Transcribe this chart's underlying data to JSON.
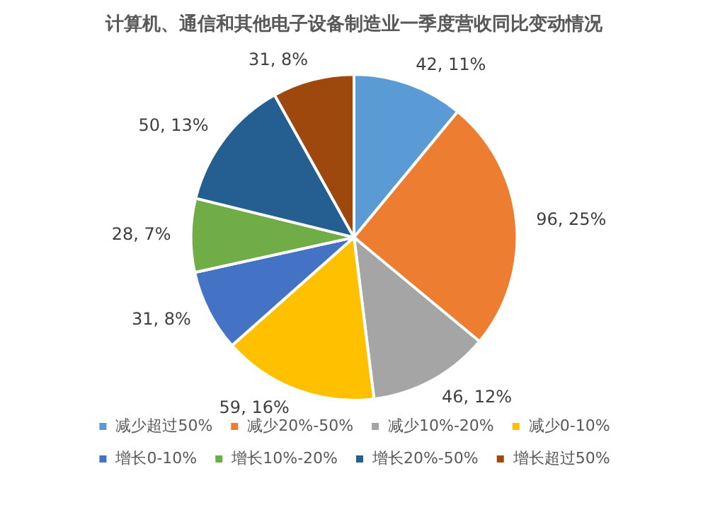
{
  "chart_data": {
    "type": "pie",
    "title": "计算机、通信和其他电子设备制造业一季度营收同比变动情况",
    "categories": [
      "减少超过50%",
      "减少20%-50%",
      "减少10%-20%",
      "减少0-10%",
      "增长0-10%",
      "增长10%-20%",
      "增长20%-50%",
      "增长超过50%"
    ],
    "values": [
      42,
      96,
      46,
      59,
      31,
      28,
      50,
      31
    ],
    "colors": [
      "#5b9bd5",
      "#ed7d31",
      "#a5a5a5",
      "#ffc000",
      "#4472c4",
      "#70ad47",
      "#255e91",
      "#9e480e"
    ],
    "value_labels": [
      "42, 11%",
      "96, 25%",
      "46, 12%",
      "59, 16%",
      "31, 8%",
      "28, 7%",
      "50, 13%",
      "31, 8%"
    ],
    "legend": "bottom"
  }
}
